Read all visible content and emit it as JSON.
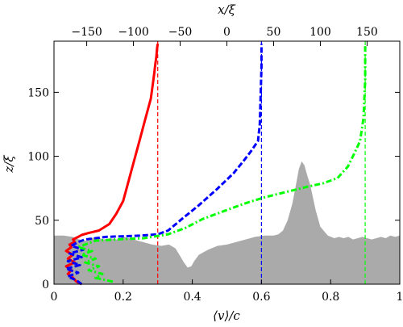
{
  "chart_data": {
    "type": "line",
    "xlabel": "⟨v⟩/c",
    "ylabel": "z/ξ",
    "x2label": "x/ξ",
    "xlim": [
      0,
      1
    ],
    "ylim": [
      0,
      190
    ],
    "x2lim": [
      -185,
      185
    ],
    "x_ticks": [
      0,
      0.2,
      0.4,
      0.6,
      0.8,
      1
    ],
    "x_tick_labels": [
      "0",
      "0.2",
      "0.4",
      "0.6",
      "0.8",
      "1"
    ],
    "y_ticks": [
      0,
      50,
      100,
      150
    ],
    "y_tick_labels": [
      "0",
      "50",
      "100",
      "150"
    ],
    "x2_ticks": [
      -150,
      -100,
      -50,
      0,
      50,
      100,
      150
    ],
    "x2_tick_labels": [
      "−150",
      "−100",
      "−50",
      "0",
      "50",
      "100",
      "150"
    ],
    "grid": false,
    "profile": {
      "color": "#aaaaaa",
      "x2": [
        -185,
        -175,
        -165,
        -158,
        -150,
        -145,
        -140,
        -132,
        -125,
        -118,
        -110,
        -100,
        -90,
        -80,
        -70,
        -62,
        -55,
        -50,
        -46,
        -42,
        -38,
        -35,
        -30,
        -20,
        -10,
        0,
        10,
        20,
        30,
        40,
        50,
        55,
        60,
        65,
        70,
        74,
        77,
        80,
        83,
        86,
        89,
        92,
        95,
        100,
        108,
        115,
        120,
        125,
        130,
        135,
        140,
        145,
        150,
        155,
        160,
        165,
        170,
        175,
        180,
        185
      ],
      "z": [
        38,
        38,
        37,
        35,
        34,
        36,
        37,
        35,
        36,
        35,
        37,
        35,
        33,
        31,
        30,
        31,
        28,
        22,
        17,
        13,
        14,
        18,
        23,
        27,
        30,
        31,
        33,
        35,
        37,
        38,
        38,
        39,
        42,
        50,
        63,
        78,
        90,
        96,
        93,
        85,
        78,
        68,
        58,
        45,
        38,
        36,
        37,
        36,
        37,
        35,
        36,
        37,
        36,
        35,
        36,
        37,
        36,
        38,
        37,
        38
      ]
    },
    "markers": [
      {
        "x": 0.3,
        "color": "#ff0000"
      },
      {
        "x": 0.6,
        "color": "#0000ff"
      },
      {
        "x": 0.9,
        "color": "#00ff00"
      }
    ],
    "series": [
      {
        "color": "#ff0000",
        "style": "solid",
        "x": [
          0.08,
          0.065,
          0.055,
          0.04,
          0.05,
          0.035,
          0.06,
          0.04,
          0.055,
          0.035,
          0.05,
          0.045,
          0.06,
          0.055,
          0.07,
          0.08,
          0.1,
          0.13,
          0.16,
          0.18,
          0.2,
          0.21,
          0.22,
          0.23,
          0.24,
          0.25,
          0.26,
          0.27,
          0.28,
          0.285,
          0.29,
          0.293,
          0.296,
          0.298,
          0.3
        ],
        "y": [
          0,
          2,
          5,
          8,
          11,
          14,
          17,
          20,
          23,
          26,
          29,
          31,
          33,
          35,
          37,
          38.5,
          40,
          42,
          47,
          55,
          65,
          75,
          85,
          95,
          105,
          115,
          125,
          135,
          145,
          155,
          165,
          172,
          178,
          184,
          188
        ]
      },
      {
        "color": "#0000ff",
        "style": "dashed",
        "x": [
          0.08,
          0.065,
          0.04,
          0.07,
          0.035,
          0.075,
          0.04,
          0.08,
          0.045,
          0.085,
          0.05,
          0.07,
          0.09,
          0.15,
          0.25,
          0.3,
          0.33,
          0.37,
          0.42,
          0.47,
          0.52,
          0.55,
          0.57,
          0.59,
          0.595,
          0.598,
          0.6,
          0.6
        ],
        "y": [
          0,
          3,
          6,
          9,
          12,
          15,
          18,
          21,
          24,
          27,
          30,
          33,
          35,
          37,
          38,
          39,
          42,
          51,
          62,
          74,
          87,
          97,
          104,
          112,
          125,
          150,
          170,
          188
        ]
      },
      {
        "color": "#00ff00",
        "style": "dashdot",
        "x": [
          0.17,
          0.12,
          0.14,
          0.1,
          0.13,
          0.09,
          0.12,
          0.08,
          0.11,
          0.07,
          0.1,
          0.12,
          0.18,
          0.26,
          0.33,
          0.38,
          0.43,
          0.49,
          0.55,
          0.61,
          0.67,
          0.73,
          0.78,
          0.82,
          0.85,
          0.87,
          0.885,
          0.895,
          0.9,
          0.9
        ],
        "y": [
          2,
          5,
          8,
          11,
          14,
          17,
          20,
          23,
          26,
          29,
          32,
          34,
          35,
          36,
          39,
          44,
          51,
          57,
          63,
          68,
          72,
          76,
          79,
          83,
          92,
          103,
          112,
          130,
          160,
          188
        ]
      }
    ]
  }
}
